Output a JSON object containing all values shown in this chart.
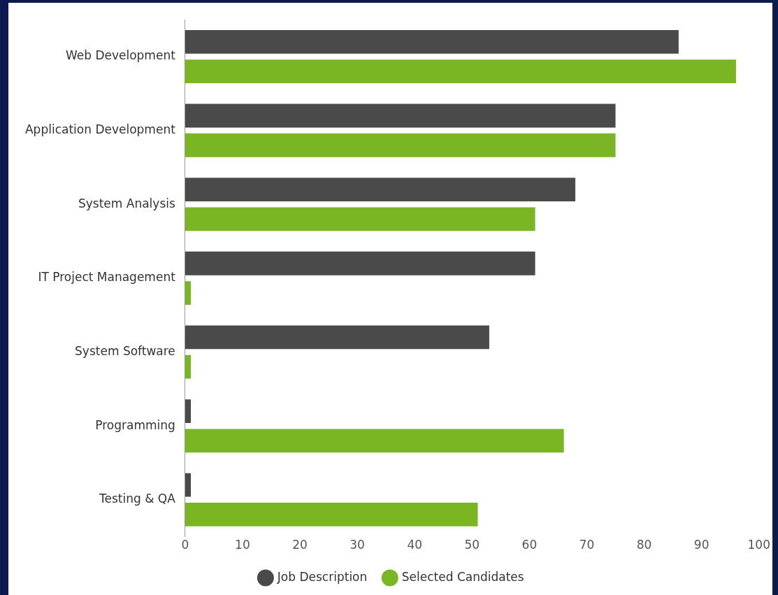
{
  "chart_data": {
    "type": "bar",
    "orientation": "horizontal",
    "categories": [
      "Web Development",
      "Application Development",
      "System Analysis",
      "IT Project Management",
      "System Software",
      "Programming",
      "Testing & QA"
    ],
    "series": [
      {
        "name": "Job Description",
        "color": "#4a4a4a",
        "values": [
          86,
          75,
          68,
          61,
          53,
          1,
          1
        ]
      },
      {
        "name": "Selected Candidates",
        "color": "#7ab523",
        "values": [
          96,
          75,
          61,
          1,
          1,
          66,
          51
        ]
      }
    ],
    "xlim": [
      0,
      100
    ],
    "xticks": [
      0,
      10,
      20,
      30,
      40,
      50,
      60,
      70,
      80,
      90,
      100
    ],
    "grid": false,
    "legend": "bottom"
  }
}
